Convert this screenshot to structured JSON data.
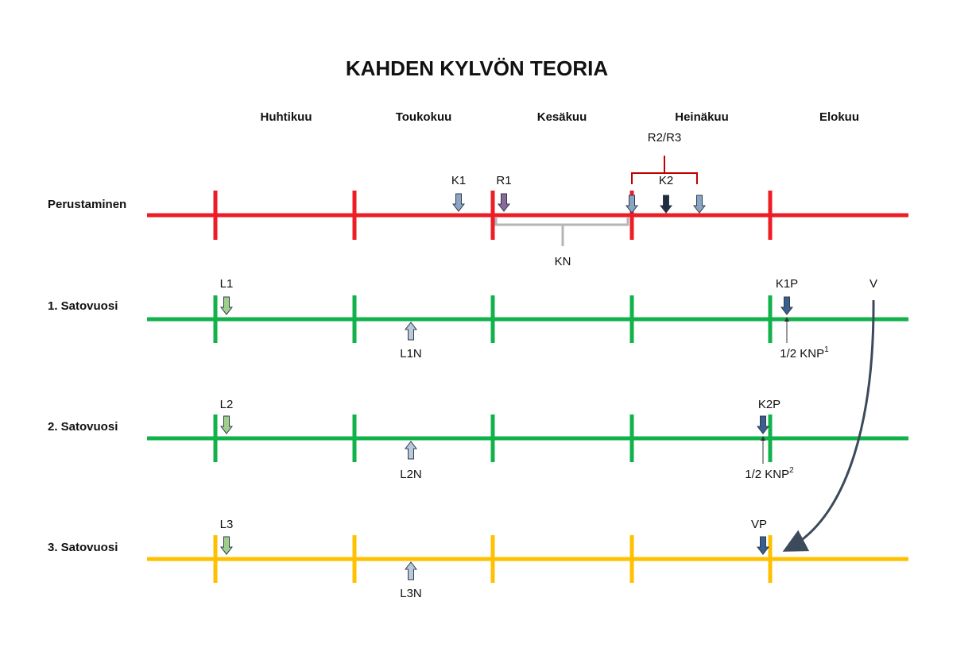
{
  "title": "KAHDEN KYLVÖN TEORIA",
  "months": [
    "Huhtikuu",
    "Toukokuu",
    "Kesäkuu",
    "Heinäkuu",
    "Elokuu"
  ],
  "rows": [
    {
      "label": "Perustaminen"
    },
    {
      "label": "1. Satovuosi"
    },
    {
      "label": "2. Satovuosi"
    },
    {
      "label": "3. Satovuosi"
    }
  ],
  "annotations": {
    "k1": "K1",
    "r1": "R1",
    "r2r3": "R2/R3",
    "k2": "K2",
    "kn": "KN",
    "l1": "L1",
    "l1n": "L1N",
    "k1p": "K1P",
    "v": "V",
    "knp1": {
      "text": "1/2 KNP",
      "sup": "1"
    },
    "l2": "L2",
    "l2n": "L2N",
    "k2p": "K2P",
    "knp2": {
      "text": "1/2 KNP",
      "sup": "2"
    },
    "l3": "L3",
    "l3n": "L3N",
    "vp": "VP"
  }
}
